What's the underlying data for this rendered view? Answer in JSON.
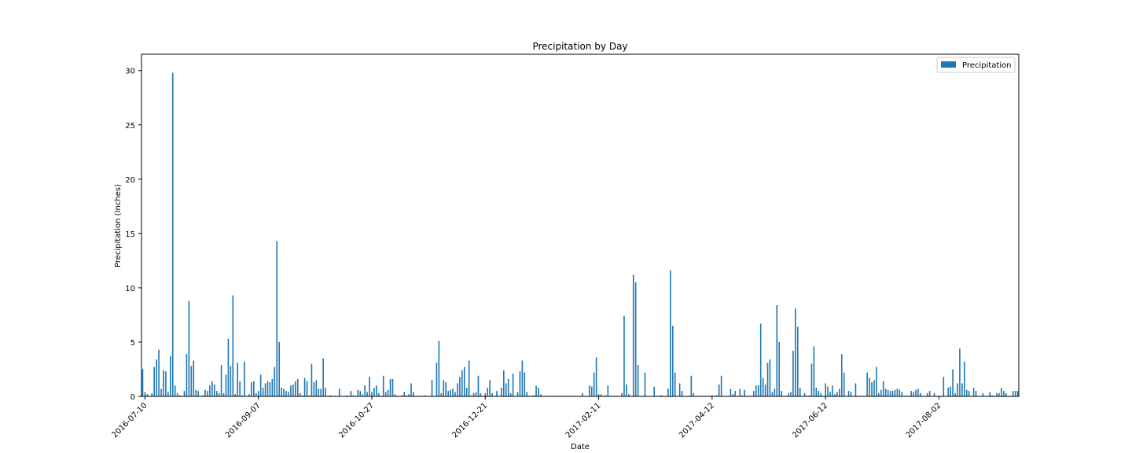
{
  "chart_data": {
    "type": "bar",
    "title": "Precipitation by Day",
    "xlabel": "Date",
    "ylabel": "Precipitation (Inches)",
    "ylim": [
      0,
      31.5
    ],
    "yticks": [
      0,
      5,
      10,
      15,
      20,
      25,
      30
    ],
    "xtick_labels": [
      "2016-07-10",
      "2016-09-07",
      "2016-10-27",
      "2016-12-21",
      "2017-02-11",
      "2017-04-12",
      "2017-06-12",
      "2017-08-02"
    ],
    "legend_position": "top-right",
    "grid": false,
    "series": [
      {
        "name": "Precipitation",
        "color": "#1f77b4",
        "values": [
          2.5,
          0.4,
          0.2,
          0.05,
          0.3,
          2.7,
          3.4,
          4.3,
          0.7,
          2.4,
          2.3,
          0.4,
          3.7,
          29.8,
          1.0,
          0.3,
          0.1,
          0.05,
          0.5,
          3.9,
          8.8,
          2.8,
          3.3,
          0.6,
          0.5,
          0.05,
          0.1,
          0.6,
          0.5,
          1.0,
          1.4,
          1.1,
          0.5,
          0.3,
          2.9,
          0.3,
          2.0,
          5.3,
          2.8,
          9.3,
          0.2,
          3.1,
          1.4,
          0.1,
          3.2,
          0.05,
          0.2,
          1.3,
          1.4,
          0.3,
          0.5,
          2.0,
          0.8,
          1.2,
          1.4,
          1.3,
          1.6,
          2.7,
          14.3,
          5.0,
          0.8,
          0.7,
          0.5,
          0.4,
          1.0,
          1.1,
          1.4,
          1.6,
          0.3,
          0.1,
          1.7,
          1.4,
          0.1,
          3.0,
          1.3,
          1.5,
          0.7,
          0.7,
          3.5,
          0.8,
          0.05,
          0.1,
          0.05,
          0.05,
          0.05,
          0.7,
          0.05,
          0.05,
          0.1,
          0.05,
          0.5,
          0.1,
          0.05,
          0.6,
          0.5,
          0.2,
          1.0,
          0.4,
          1.8,
          0.4,
          0.8,
          1.0,
          0.3,
          0.05,
          1.9,
          0.4,
          0.6,
          1.6,
          1.6,
          0.2,
          0.05,
          0.05,
          0.1,
          0.4,
          0.1,
          0.2,
          1.2,
          0.4,
          0.05,
          0.05,
          0.05,
          0.05,
          0.1,
          0.05,
          0.05,
          1.5,
          0.05,
          3.1,
          5.1,
          0.3,
          1.5,
          1.3,
          0.5,
          0.6,
          0.7,
          0.4,
          1.2,
          1.8,
          2.4,
          2.7,
          0.8,
          3.3,
          0.1,
          0.3,
          0.4,
          1.9,
          0.3,
          0.05,
          0.3,
          0.8,
          1.5,
          0.3,
          0.05,
          0.5,
          0.05,
          0.8,
          2.4,
          1.2,
          1.6,
          0.3,
          2.1,
          0.05,
          0.4,
          2.3,
          3.3,
          2.2,
          0.4,
          0.05,
          0.05,
          0.1,
          1.0,
          0.8,
          0.2,
          0.05,
          0.05,
          0.05,
          0.05,
          0.05,
          0.05,
          0.05,
          0.05,
          0.05,
          0.05,
          0.05,
          0.05,
          0.05,
          0.05,
          0.05,
          0.05,
          0.05,
          0.3,
          0.05,
          0.05,
          1.0,
          0.9,
          2.2,
          3.6,
          0.2,
          0.2,
          0.05,
          0.1,
          1.0,
          0.05,
          0.05,
          0.05,
          0.05,
          0.05,
          0.3,
          7.4,
          1.1,
          0.2,
          0.05,
          11.2,
          10.5,
          2.9,
          0.05,
          0.05,
          2.2,
          0.05,
          0.05,
          0.05,
          0.9,
          0.05,
          0.05,
          0.1,
          0.05,
          0.05,
          0.7,
          11.6,
          6.5,
          2.2,
          0.05,
          1.2,
          0.5,
          0.05,
          0.05,
          0.05,
          1.9,
          0.3,
          0.05,
          0.05,
          0.05,
          0.05,
          0.05,
          0.05,
          0.05,
          0.1,
          0.05,
          0.1,
          1.1,
          1.9,
          0.05,
          0.05,
          0.05,
          0.7,
          0.2,
          0.5,
          0.05,
          0.7,
          0.1,
          0.6,
          0.05,
          0.05,
          0.05,
          0.5,
          1.0,
          1.0,
          6.7,
          1.7,
          1.1,
          3.1,
          3.4,
          0.4,
          0.7,
          8.4,
          5.0,
          0.5,
          0.05,
          0.05,
          0.3,
          0.4,
          4.2,
          8.1,
          6.4,
          0.8,
          0.05,
          0.3,
          0.05,
          0.1,
          3.0,
          4.6,
          0.8,
          0.5,
          0.3,
          0.05,
          1.2,
          0.9,
          0.4,
          1.0,
          0.2,
          0.4,
          0.7,
          3.9,
          2.2,
          0.05,
          0.5,
          0.4,
          0.05,
          1.2,
          0.05,
          0.05,
          0.05,
          0.05,
          2.2,
          1.7,
          1.3,
          1.5,
          2.7,
          0.3,
          0.6,
          1.4,
          0.7,
          0.6,
          0.5,
          0.5,
          0.6,
          0.7,
          0.6,
          0.4,
          0.05,
          0.1,
          0.05,
          0.5,
          0.4,
          0.6,
          0.7,
          0.3,
          0.05,
          0.05,
          0.3,
          0.5,
          0.05,
          0.3,
          0.05,
          0.05,
          0.05,
          1.8,
          0.05,
          0.8,
          0.9,
          2.5,
          0.3,
          1.2,
          4.4,
          1.2,
          3.2,
          0.6,
          0.5,
          0.05,
          0.8,
          0.5,
          0.05,
          0.05,
          0.3,
          0.05,
          0.05,
          0.4,
          0.1,
          0.05,
          0.3,
          0.3,
          0.8,
          0.5,
          0.3,
          0.05,
          0.05,
          0.5,
          0.5,
          0.5
        ]
      }
    ]
  }
}
